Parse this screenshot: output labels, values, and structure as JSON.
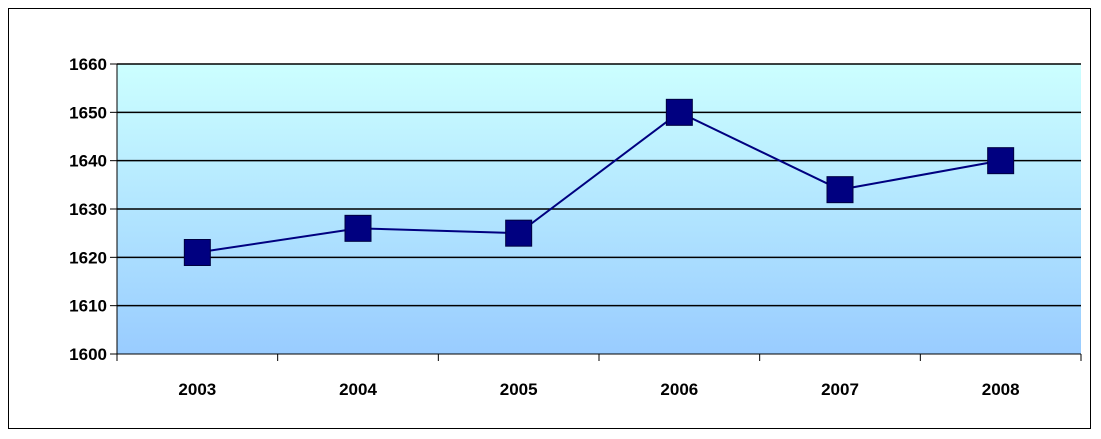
{
  "chart_data": {
    "type": "line",
    "title": "",
    "xlabel": "",
    "ylabel": "",
    "categories": [
      "2003",
      "2004",
      "2005",
      "2006",
      "2007",
      "2008"
    ],
    "series": [
      {
        "values": [
          1621,
          1626,
          1625,
          1650,
          1634,
          1640
        ]
      }
    ],
    "ylim": [
      1600,
      1660
    ],
    "yticks": [
      "1600",
      "1610",
      "1620",
      "1630",
      "1640",
      "1650",
      "1660"
    ],
    "grid": true,
    "legend": "none",
    "colors": {
      "line": "#000080",
      "marker": "#000080",
      "plot_bg_top": "#ccffff",
      "plot_bg_bottom": "#99ccff",
      "grid": "#000000"
    }
  }
}
